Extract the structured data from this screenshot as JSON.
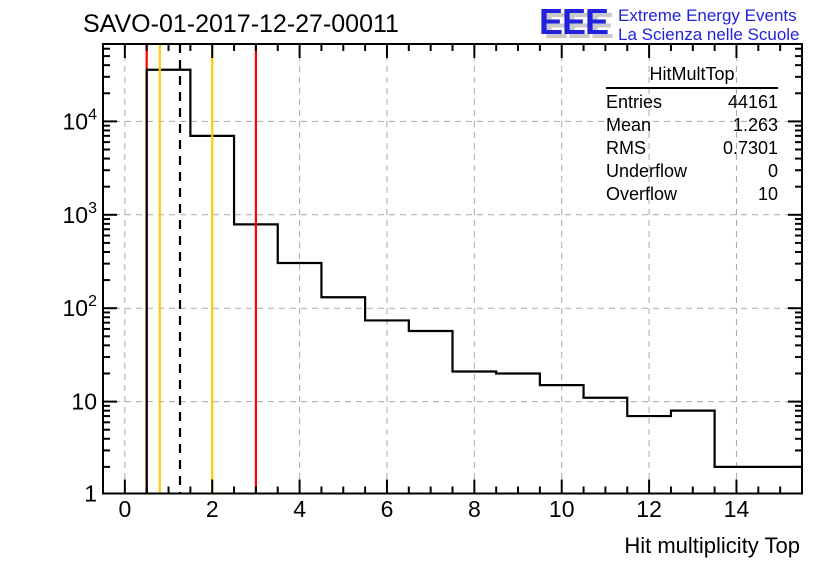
{
  "page": {
    "background": "#ffffff"
  },
  "header": {
    "title": "SAVO-01-2017-12-27-00011",
    "logo": {
      "text": "EEE",
      "tagline1": "Extreme Energy Events",
      "tagline2": "La Scienza nelle Scuole",
      "color": "#2222dd",
      "shadow_color": "#c9c9c9"
    }
  },
  "stats_box": {
    "title": "HitMultTop",
    "rows": [
      {
        "label": "Entries",
        "value": "44161"
      },
      {
        "label": "Mean",
        "value": "1.263"
      },
      {
        "label": "RMS",
        "value": "0.7301"
      },
      {
        "label": "Underflow",
        "value": "0"
      },
      {
        "label": "Overflow",
        "value": "10"
      }
    ]
  },
  "chart_data": {
    "type": "bar",
    "histogram_style": "step-outline",
    "title": "SAVO-01-2017-12-27-00011",
    "xlabel": "Hit multiplicity Top",
    "ylabel": "",
    "bin_width": 1,
    "bin_centers": [
      1,
      2,
      3,
      4,
      5,
      6,
      7,
      8,
      9,
      10,
      11,
      12,
      13,
      14,
      15
    ],
    "values": [
      35700,
      7000,
      790,
      305,
      131,
      74,
      57,
      21,
      20,
      15,
      11,
      7,
      8,
      2,
      2
    ],
    "first_bin_left_edge": 0.5,
    "xlim": [
      -0.5,
      15.5
    ],
    "y_scale": "log",
    "ylim": [
      1,
      65000
    ],
    "x_major_ticks": [
      0,
      2,
      4,
      6,
      8,
      10,
      12,
      14
    ],
    "x_tick_labels": [
      "0",
      "2",
      "4",
      "6",
      "8",
      "10",
      "12",
      "14"
    ],
    "x_minor_tick_step": 0.5,
    "y_major_ticks": [
      1,
      10,
      100,
      1000,
      10000
    ],
    "y_tick_labels": [
      {
        "base": "1",
        "exp": ""
      },
      {
        "base": "10",
        "exp": ""
      },
      {
        "base": "10",
        "exp": "2"
      },
      {
        "base": "10",
        "exp": "3"
      },
      {
        "base": "10",
        "exp": "4"
      }
    ],
    "y_grid_values": [
      10,
      100,
      1000,
      10000
    ],
    "grid": true,
    "grid_color": "#a8a8a8",
    "line_color": "#000000",
    "marker_lines": [
      {
        "x": 0.5,
        "color": "#ff0000",
        "style": "solid",
        "layer": "below",
        "name": "red-threshold-low"
      },
      {
        "x": 0.8,
        "color": "#ffcc00",
        "style": "solid",
        "layer": "above",
        "name": "orange-warning-low"
      },
      {
        "x": 1.263,
        "color": "#000000",
        "style": "dashed",
        "layer": "above",
        "name": "mean-line"
      },
      {
        "x": 2.0,
        "color": "#ffcc00",
        "style": "solid",
        "layer": "above",
        "name": "orange-warning-high"
      },
      {
        "x": 3.0,
        "color": "#ff0000",
        "style": "solid",
        "layer": "above",
        "name": "red-threshold-high"
      }
    ]
  }
}
